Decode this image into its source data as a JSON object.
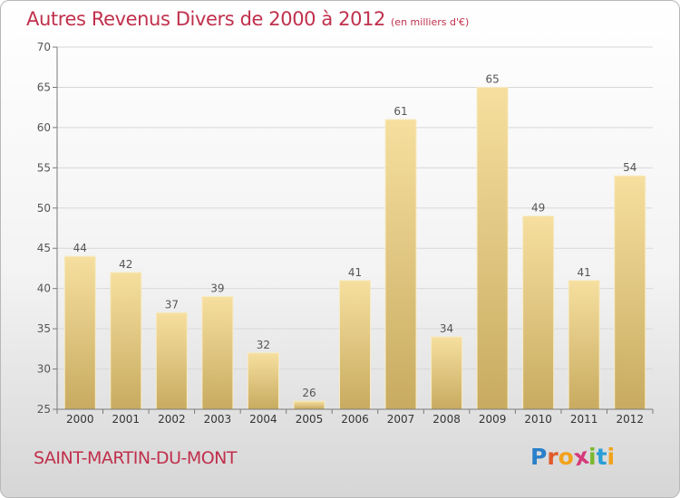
{
  "title": "Autres Revenus Divers de 2000 à 2012",
  "subtitle": "(en milliers d'€)",
  "location": "SAINT-MARTIN-DU-MONT",
  "brand": {
    "letters": [
      "P",
      "r",
      "o",
      "x",
      "i",
      "t",
      "i"
    ],
    "colors": [
      "#2a7fc9",
      "#e25a2a",
      "#f2a21b",
      "#d63a7a",
      "#7ab82e",
      "#2a9fd6",
      "#f2a21b"
    ]
  },
  "colors": {
    "title": "#c0304c",
    "bar_light": "#f6df9f",
    "bar_dark": "#c8ab60",
    "axis": "#7a7a7a",
    "grid": "#d8d8d8"
  },
  "chart_data": {
    "type": "bar",
    "categories": [
      "2000",
      "2001",
      "2002",
      "2003",
      "2004",
      "2005",
      "2006",
      "2007",
      "2008",
      "2009",
      "2010",
      "2011",
      "2012"
    ],
    "values": [
      44,
      42,
      37,
      39,
      32,
      26,
      41,
      61,
      34,
      65,
      49,
      41,
      54
    ],
    "ylim": [
      25,
      70
    ],
    "yticks": [
      25,
      30,
      35,
      40,
      45,
      50,
      55,
      60,
      65,
      70
    ],
    "grid": true
  }
}
